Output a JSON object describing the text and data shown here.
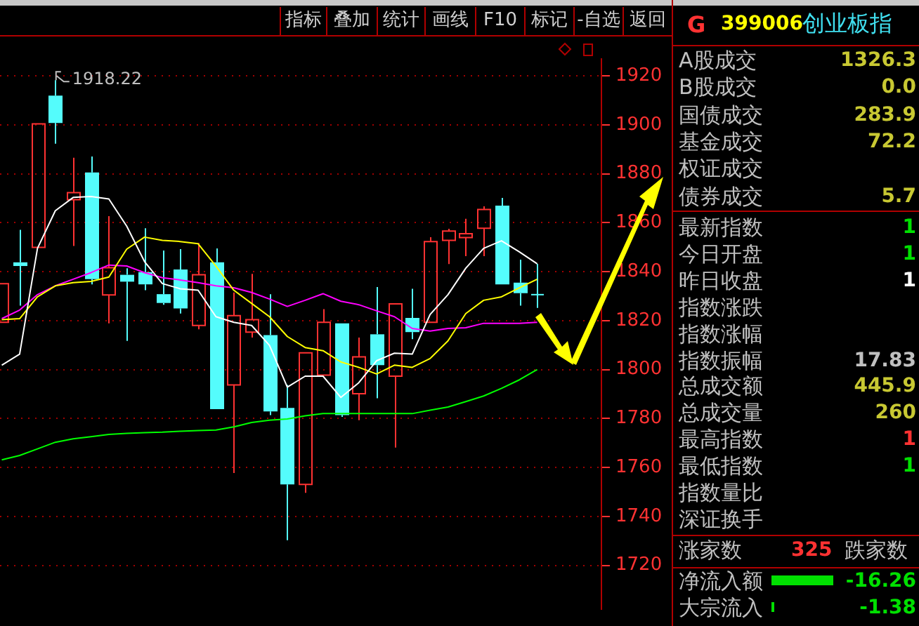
{
  "chart_data": [
    {
      "type": "candlestick",
      "categories": [
        null,
        null,
        null,
        null,
        null,
        null,
        null,
        null,
        null,
        null,
        null,
        null,
        null,
        null,
        null,
        null,
        null,
        null,
        null,
        null,
        null,
        null,
        null,
        null,
        null,
        null,
        null,
        null,
        null,
        null,
        null
      ],
      "ohlc": [
        [
          1819.3,
          1835.1,
          1819.3,
          1835.1
        ],
        [
          1843.8,
          1857.1,
          1826.1,
          1842.3
        ],
        [
          1849.9,
          1900.4,
          1849.9,
          1900.4
        ],
        [
          1911.9,
          1918.22,
          1892.3,
          1900.7
        ],
        [
          1869.4,
          1886.5,
          1850.5,
          1872.3
        ],
        [
          1880.5,
          1887,
          1834.8,
          1836.9
        ],
        [
          1830.5,
          1862.7,
          1818.9,
          1841.6
        ],
        [
          1838.7,
          1841.4,
          1811.7,
          1835.9
        ],
        [
          1839.8,
          1857.7,
          1832.4,
          1834.8
        ],
        [
          1830.8,
          1848.6,
          1826.5,
          1827.2
        ],
        [
          1840.9,
          1849.2,
          1822.9,
          1825
        ],
        [
          1818,
          1851.7,
          1816.4,
          1838.7
        ],
        [
          1843.8,
          1849.5,
          1783.8,
          1783.8
        ],
        [
          1793.7,
          1831.5,
          1757.7,
          1822
        ],
        [
          1815.3,
          1839.1,
          1813.1,
          1820.4
        ],
        [
          1814.1,
          1830.8,
          1781.4,
          1782.9
        ],
        [
          1784.3,
          1793.7,
          1730.3,
          1753.1
        ],
        [
          1753.1,
          1806.8,
          1749.6,
          1806.8
        ],
        [
          1797.7,
          1824.7,
          1797.7,
          1819.3
        ],
        [
          1818.9,
          1818.9,
          1780.7,
          1781.4
        ],
        [
          1790.1,
          1813.1,
          1779.3,
          1805.2
        ],
        [
          1814.4,
          1833.7,
          1788.3,
          1801.8
        ],
        [
          1797.3,
          1826.8,
          1768.1,
          1826.8
        ],
        [
          1821.1,
          1833,
          1812.4,
          1815.3
        ],
        [
          1819.3,
          1854.1,
          1819.3,
          1852.3
        ],
        [
          1852.8,
          1857.5,
          1843.1,
          1856.6
        ],
        [
          1853.9,
          1861.6,
          1846.3,
          1855.5
        ],
        [
          1857.7,
          1866.7,
          1846.3,
          1865.4
        ],
        [
          1867,
          1870.1,
          1834.8,
          1834.8
        ],
        [
          1835.5,
          1844.9,
          1826.1,
          1831.2
        ],
        [
          1830.6,
          1843.2,
          1825.2,
          1830.6
        ]
      ],
      "series": [
        {
          "type": "line",
          "color": "#ffffff",
          "values": [
            1801.8,
            1806.3,
            1849.5,
            1864.9,
            1870.3,
            1870.7,
            1869.7,
            1858.6,
            1844.1,
            1835.1,
            1833,
            1832.4,
            1821.6,
            1819.3,
            1818,
            1809.9,
            1792.8,
            1797.3,
            1797.3,
            1788.6,
            1794.6,
            1803.6,
            1806.7,
            1806.3,
            1822.5,
            1830.6,
            1841.4,
            1849.5,
            1852.6,
            1848.1,
            1843.2
          ]
        },
        {
          "type": "line",
          "color": "#ffff00",
          "values": [
            1820.4,
            1820.8,
            1829.7,
            1834.2,
            1835.5,
            1836,
            1837.8,
            1849.2,
            1854.1,
            1852.8,
            1852.3,
            1851.4,
            1842.3,
            1832.4,
            1827,
            1821.6,
            1813.5,
            1809,
            1807.7,
            1803.1,
            1800.9,
            1798.2,
            1801.8,
            1800.9,
            1804.5,
            1811.7,
            1822.9,
            1828.3,
            1829.7,
            1833.4,
            1836.9
          ]
        },
        {
          "type": "line",
          "color": "#ff00ff",
          "values": [
            1820.8,
            1824.3,
            1830.6,
            1834.2,
            1836.9,
            1839.6,
            1842.7,
            1842.3,
            1839.6,
            1837.5,
            1836.6,
            1835.5,
            1834.2,
            1833.4,
            1831.5,
            1828.8,
            1825.8,
            1828.3,
            1831,
            1827.9,
            1826.5,
            1824,
            1821.6,
            1816.8,
            1815.7,
            1816.8,
            1817.1,
            1818.9,
            1818.9,
            1818.9,
            1819.3
          ]
        },
        {
          "type": "line",
          "color": "#00ff00",
          "values": [
            1763.1,
            1764.9,
            1767.6,
            1770.3,
            1771.7,
            1772.6,
            1773.5,
            1773.9,
            1774.2,
            1774.4,
            1774.8,
            1775.1,
            1775.3,
            1776.6,
            1778.4,
            1779.3,
            1779.8,
            1781.1,
            1782,
            1782,
            1782,
            1782,
            1782,
            1782,
            1783.4,
            1784.7,
            1786.9,
            1789.2,
            1792.3,
            1795.8,
            1800
          ]
        }
      ],
      "ylim": [
        1702,
        1927
      ],
      "yticks": [
        1720,
        1740,
        1760,
        1780,
        1800,
        1820,
        1840,
        1860,
        1880,
        1900,
        1920
      ],
      "grid": "y",
      "tick_labels": "y",
      "marker": "none",
      "legend": false,
      "annotations": [
        "1918.22"
      ]
    },
    {
      "type": "other",
      "annotations": [
        "指标",
        "叠加",
        "统计",
        "画线",
        "F10",
        "标记",
        "-自选",
        "返回"
      ]
    },
    {
      "type": "other",
      "title": "399006",
      "subtitle": "创业板指",
      "categories": [
        "A股成交",
        "B股成交",
        "国债成交",
        "基金成交",
        "权证成交",
        "债券成交",
        "最新指数",
        "今日开盘",
        "昨日收盘",
        "指数涨跌",
        "指数涨幅",
        "指数振幅",
        "总成交额",
        "总成交量",
        "最高指数",
        "最低指数",
        "指数量比",
        "深证换手"
      ],
      "value_labels": [
        "1326.3",
        "0.0",
        "283.9",
        "72.2",
        null,
        "5.7",
        "1",
        "1",
        "1",
        null,
        null,
        "17.83",
        "445.9",
        "260",
        "1",
        "1",
        null,
        null
      ],
      "colors": [
        "#c8c832",
        "#c8c832",
        "#c8c832",
        "#c8c832",
        null,
        "#c8c832",
        "#00e000",
        "#00e000",
        "#ffffff",
        null,
        null,
        "#c0c0c0",
        "#c8c832",
        "#c8c832",
        "#ff3232",
        "#00e000",
        null,
        null
      ],
      "annotations": [
        "G",
        "涨家数",
        "325",
        "跌家数",
        "净流入额",
        "-16.26",
        "大宗流入",
        "-1.38"
      ]
    }
  ]
}
